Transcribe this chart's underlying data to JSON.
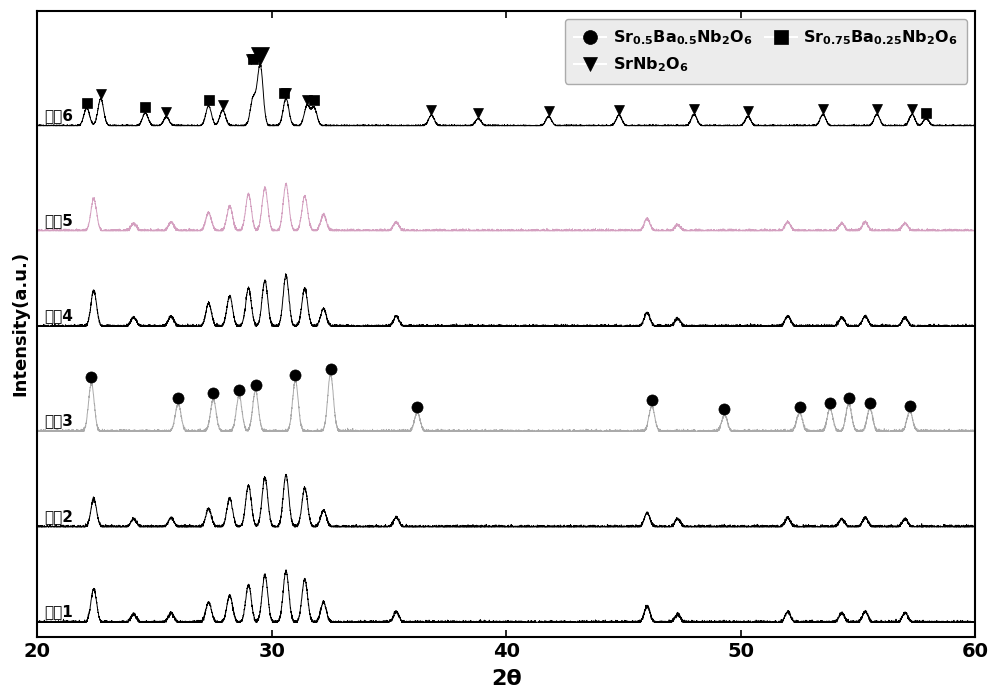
{
  "title": "",
  "xlabel": "2θ",
  "ylabel": "Intensity(a.u.)",
  "xlim": [
    20,
    60
  ],
  "x_ticks": [
    20,
    30,
    40,
    50,
    60
  ],
  "series_labels": [
    "实夁6",
    "实夁5",
    "实夁4",
    "实夁3",
    "实夁2",
    "实夁1"
  ],
  "series_colors": [
    "#000000",
    "#d4a0c0",
    "#000000",
    "#aaaaaa",
    "#000000",
    "#000000"
  ],
  "offsets": [
    5.2,
    4.1,
    3.1,
    2.0,
    1.0,
    0.0
  ],
  "background_color": "#ffffff",
  "circle_markers_3": [
    22.3,
    26.0,
    27.5,
    28.6,
    29.3,
    31.0,
    32.5,
    36.2,
    46.2,
    49.3,
    52.5,
    53.8,
    54.6,
    55.5,
    57.2
  ],
  "triangle_markers_6": [
    22.7,
    25.5,
    27.9,
    29.1,
    30.6,
    31.5,
    36.8,
    38.8,
    41.8,
    44.8,
    48.0,
    50.3,
    53.5,
    55.8,
    57.3
  ],
  "square_markers_6": [
    22.1,
    24.6,
    27.3,
    29.2,
    30.5,
    31.8,
    57.9
  ],
  "legend_circle_label": "Sr$_{0.5}$Ba$_{0.5}$Nb$_2$O$_6$",
  "legend_triangle_label": "SrNb$_2$O$_6$",
  "legend_square_label": "Sr$_{0.75}$Ba$_{0.25}$Nb$_2$O$_6$"
}
